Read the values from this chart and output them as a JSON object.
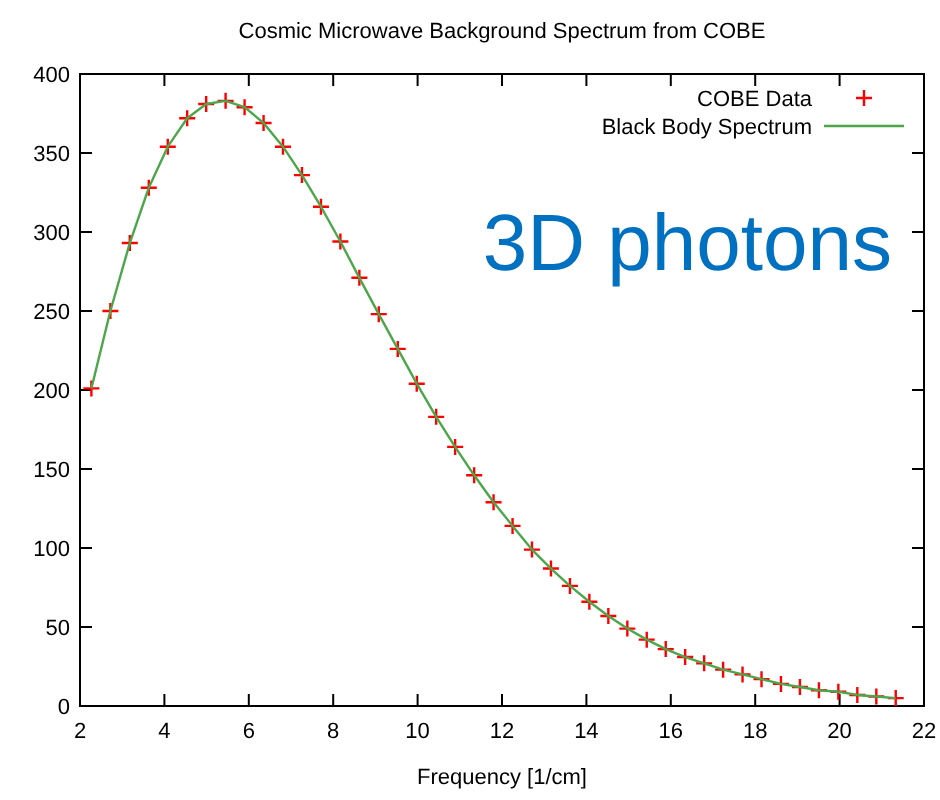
{
  "chart_data": {
    "type": "scatter",
    "title": "Cosmic Microwave Background Spectrum from COBE",
    "xlabel": "Frequency [1/cm]",
    "annotations": [
      "3D photons"
    ],
    "x": [
      2.27,
      2.72,
      3.18,
      3.63,
      4.08,
      4.54,
      4.99,
      5.45,
      5.9,
      6.35,
      6.81,
      7.26,
      7.71,
      8.17,
      8.62,
      9.08,
      9.53,
      9.98,
      10.44,
      10.89,
      11.34,
      11.8,
      12.25,
      12.71,
      13.16,
      13.61,
      14.07,
      14.52,
      14.97,
      15.43,
      15.88,
      16.34,
      16.79,
      17.24,
      17.7,
      18.15,
      18.61,
      19.06,
      19.51,
      19.97,
      20.42,
      20.87,
      21.33
    ],
    "series": [
      {
        "name": "COBE Data",
        "marker": "cross",
        "color": "#ff0000",
        "values": [
          201,
          250,
          293,
          328,
          354,
          372,
          381,
          383,
          379,
          369,
          354,
          336,
          316,
          294,
          271,
          248,
          226,
          204,
          183,
          164,
          146,
          129,
          114,
          99,
          87,
          76,
          66,
          57,
          49,
          42,
          36,
          31,
          27,
          23,
          20,
          17,
          14,
          12,
          10,
          9,
          7,
          6,
          5
        ]
      },
      {
        "name": "Black Body Spectrum",
        "type": "line",
        "marker": "none",
        "color": "#4ca64c",
        "values": [
          201,
          250,
          293,
          328,
          354,
          372,
          381,
          383,
          379,
          369,
          354,
          336,
          316,
          294,
          271,
          248,
          226,
          204,
          183,
          164,
          146,
          129,
          114,
          99,
          87,
          76,
          66,
          57,
          49,
          42,
          36,
          31,
          27,
          23,
          20,
          17,
          14,
          12,
          10,
          9,
          7,
          6,
          5
        ]
      }
    ],
    "xlim": [
      2,
      22
    ],
    "xticks": [
      2,
      4,
      6,
      8,
      10,
      12,
      14,
      16,
      18,
      20,
      22
    ],
    "ylim": [
      0,
      400
    ],
    "yticks": [
      0,
      50,
      100,
      150,
      200,
      250,
      300,
      350,
      400
    ],
    "grid": false,
    "legend": "top right"
  }
}
